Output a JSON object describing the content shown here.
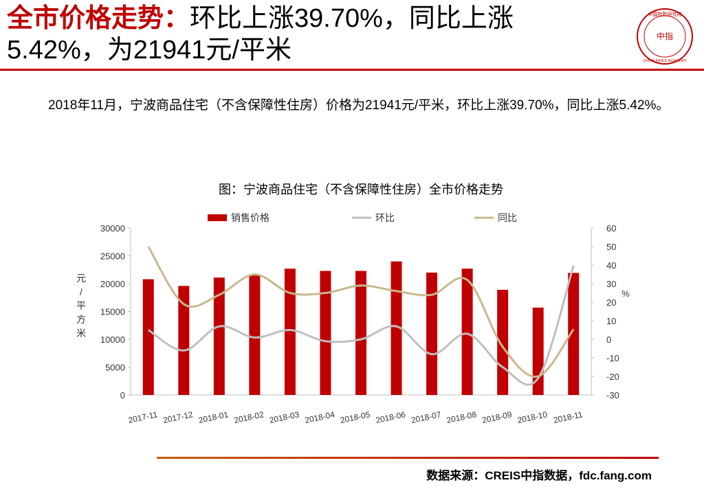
{
  "header": {
    "title_label": "全市价格走势：",
    "title_text": "环比上涨39.70%，同比上涨5.42%，为21941元/平米"
  },
  "logo": {
    "name_cn": "中国指数研究院",
    "mark": "中指",
    "name_en": "CHINA INDEX ACADEMY"
  },
  "body": "2018年11月，宁波商品住宅（不含保障性住房）价格为21941元/平米，环比上涨39.70%，同比上涨5.42%。",
  "source": "数据来源：CREIS中指数据，fdc.fang.com",
  "chart_data": {
    "type": "bar",
    "title": "图：宁波商品住宅（不含保障性住房）全市价格走势",
    "categories": [
      "2017-11",
      "2017-12",
      "2018-01",
      "2018-02",
      "2018-03",
      "2018-04",
      "2018-05",
      "2018-06",
      "2018-07",
      "2018-08",
      "2018-09",
      "2018-10",
      "2018-11"
    ],
    "series": [
      {
        "name": "销售价格",
        "type": "bar",
        "color": "#c00000",
        "values": [
          20800,
          19600,
          21100,
          21600,
          22700,
          22300,
          22300,
          24000,
          22000,
          22700,
          18900,
          15700,
          21941
        ]
      },
      {
        "name": "环比",
        "type": "line",
        "axis": "y2",
        "color": "#bfbfbf",
        "values": [
          5,
          -6,
          7,
          1,
          5,
          -1,
          0,
          7,
          -8,
          3,
          -15,
          -21,
          39.7
        ]
      },
      {
        "name": "同比",
        "type": "line",
        "axis": "y2",
        "color": "#c8b88c",
        "values": [
          50,
          19,
          24,
          35,
          25,
          25,
          29,
          26,
          24,
          32,
          -4,
          -20,
          5.42
        ]
      }
    ],
    "ylabel": "元/平方米",
    "y2label": "%",
    "ylim": [
      0,
      30000
    ],
    "yticks": [
      0,
      5000,
      10000,
      15000,
      20000,
      25000,
      30000
    ],
    "y2lim": [
      -30,
      60
    ],
    "y2ticks": [
      -30,
      -20,
      -10,
      0,
      10,
      20,
      30,
      40,
      50,
      60
    ],
    "legend": "top"
  }
}
